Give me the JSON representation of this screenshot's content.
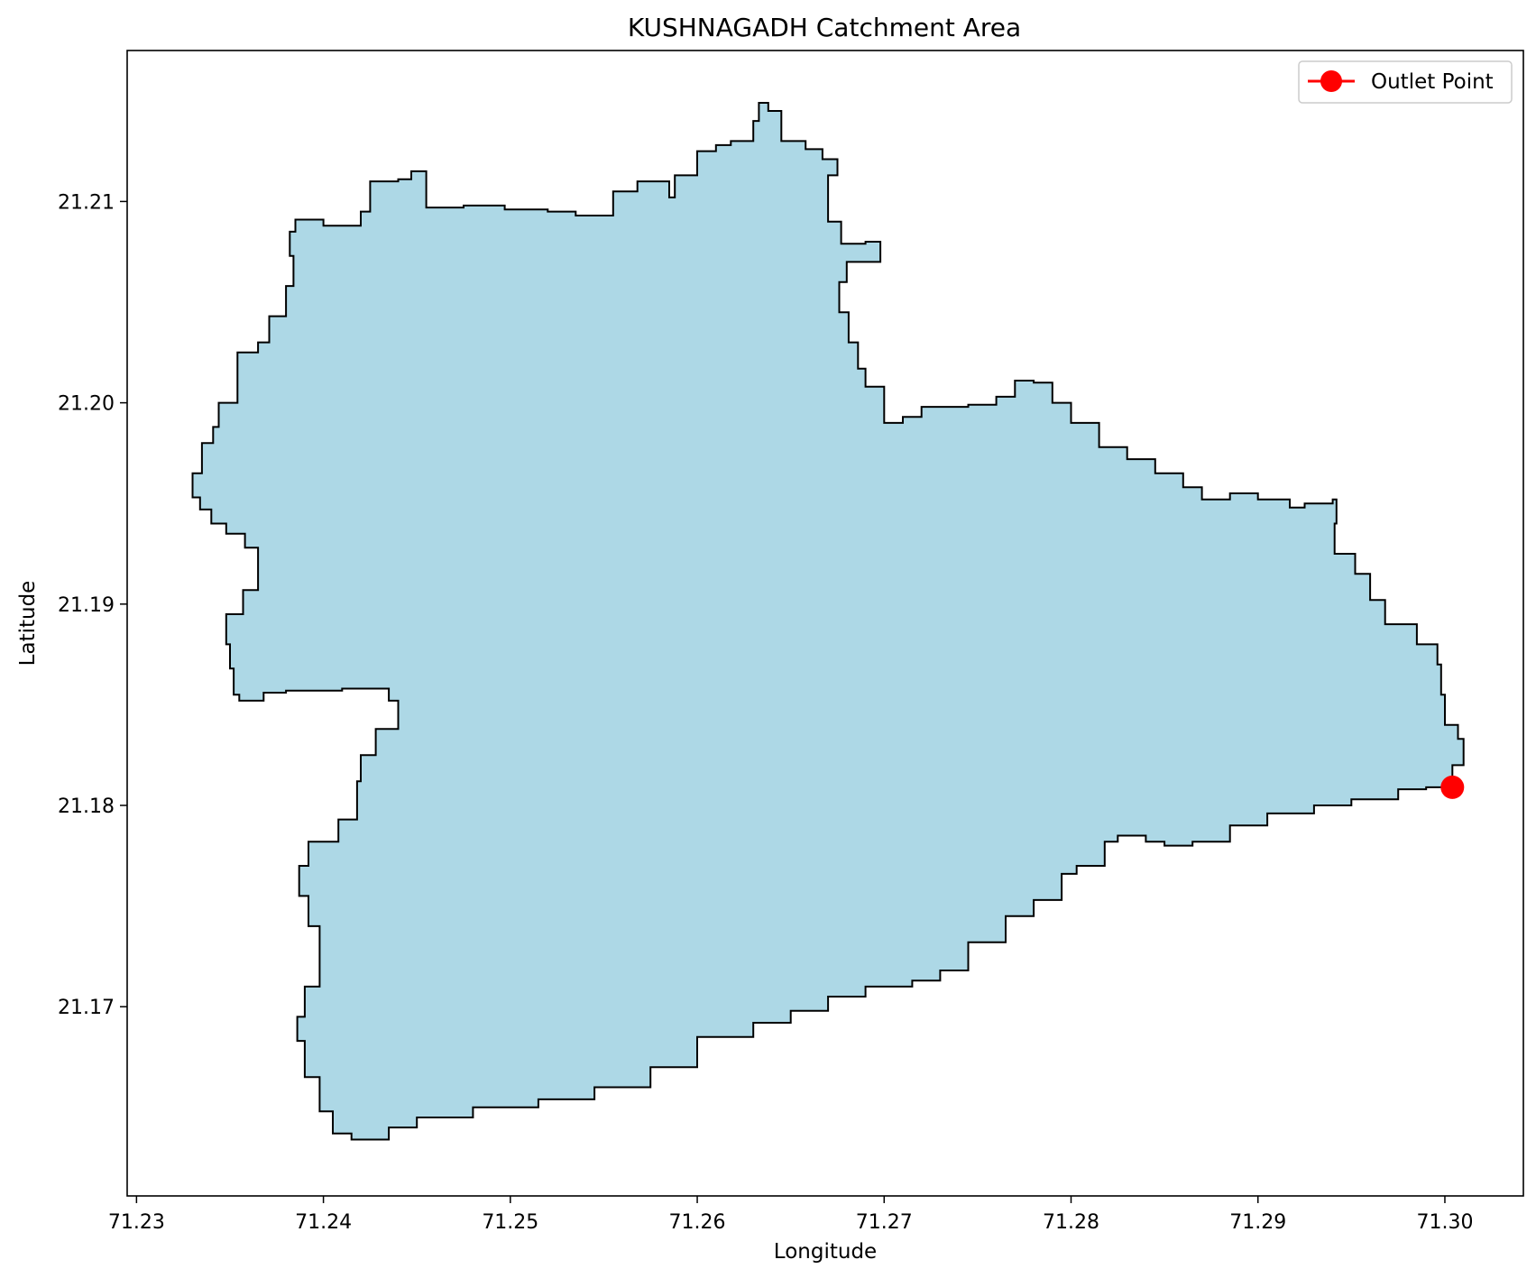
{
  "chart_data": {
    "type": "map",
    "title": "KUSHNAGADH Catchment Area",
    "xlabel": "Longitude",
    "ylabel": "Latitude",
    "xlim": [
      71.2295,
      71.3042
    ],
    "ylim": [
      21.1606,
      21.2175
    ],
    "x_ticks": [
      "71.23",
      "71.24",
      "71.25",
      "71.26",
      "71.27",
      "71.28",
      "71.29",
      "71.30"
    ],
    "x_tick_values": [
      71.23,
      71.24,
      71.25,
      71.26,
      71.27,
      71.28,
      71.29,
      71.3
    ],
    "y_ticks": [
      "21.17",
      "21.18",
      "21.19",
      "21.20",
      "21.21"
    ],
    "y_tick_values": [
      21.17,
      21.18,
      21.19,
      21.2,
      21.21
    ],
    "grid": false,
    "legend": {
      "position": "top-right",
      "entries": [
        {
          "label": "Outlet Point",
          "color": "#ff0000"
        }
      ]
    },
    "catchment_fill": "#add8e6",
    "catchment_edge": "#000000",
    "outlet": {
      "lon": 71.3004,
      "lat": 21.1809,
      "color": "#ff0000"
    },
    "boundary": [
      [
        71.2334,
        21.1953
      ],
      [
        71.233,
        21.1965
      ],
      [
        71.2335,
        21.198
      ],
      [
        71.2341,
        21.1988
      ],
      [
        71.2344,
        21.2
      ],
      [
        71.2354,
        21.2025
      ],
      [
        71.2365,
        21.203
      ],
      [
        71.2371,
        21.2043
      ],
      [
        71.238,
        21.2058
      ],
      [
        71.2384,
        21.2073
      ],
      [
        71.2382,
        21.2085
      ],
      [
        71.2385,
        21.2091
      ],
      [
        71.24,
        21.2088
      ],
      [
        71.241,
        21.2088
      ],
      [
        71.242,
        21.2095
      ],
      [
        71.2425,
        21.211
      ],
      [
        71.244,
        21.2111
      ],
      [
        71.2447,
        21.2115
      ],
      [
        71.2455,
        21.2097
      ],
      [
        71.2475,
        21.2098
      ],
      [
        71.2497,
        21.2096
      ],
      [
        71.252,
        21.2095
      ],
      [
        71.2535,
        21.2093
      ],
      [
        71.2555,
        21.2105
      ],
      [
        71.2568,
        21.211
      ],
      [
        71.2585,
        21.2102
      ],
      [
        71.2588,
        21.2113
      ],
      [
        71.26,
        21.2125
      ],
      [
        71.261,
        21.2128
      ],
      [
        71.2618,
        21.213
      ],
      [
        71.263,
        21.214
      ],
      [
        71.2633,
        21.2149
      ],
      [
        71.2638,
        21.2145
      ],
      [
        71.2645,
        21.213
      ],
      [
        71.2658,
        21.2126
      ],
      [
        71.2667,
        21.2121
      ],
      [
        71.2675,
        21.2113
      ],
      [
        71.267,
        21.21
      ],
      [
        71.267,
        21.209
      ],
      [
        71.2677,
        21.2079
      ],
      [
        71.269,
        21.208
      ],
      [
        71.2698,
        21.207
      ],
      [
        71.268,
        21.206
      ],
      [
        71.2676,
        21.2045
      ],
      [
        71.2681,
        21.203
      ],
      [
        71.2686,
        21.2017
      ],
      [
        71.269,
        21.2008
      ],
      [
        71.27,
        21.199
      ],
      [
        71.271,
        21.1993
      ],
      [
        71.272,
        21.1998
      ],
      [
        71.2745,
        21.1999
      ],
      [
        71.276,
        21.2003
      ],
      [
        71.277,
        21.2011
      ],
      [
        71.278,
        21.201
      ],
      [
        71.279,
        21.2
      ],
      [
        71.28,
        21.199
      ],
      [
        71.2815,
        21.1978
      ],
      [
        71.283,
        21.1972
      ],
      [
        71.2845,
        21.1965
      ],
      [
        71.286,
        21.1958
      ],
      [
        71.287,
        21.1952
      ],
      [
        71.2885,
        21.1955
      ],
      [
        71.29,
        21.1952
      ],
      [
        71.2917,
        21.1948
      ],
      [
        71.2925,
        21.195
      ],
      [
        71.294,
        21.1952
      ],
      [
        71.2942,
        21.194
      ],
      [
        71.2941,
        21.1925
      ],
      [
        71.2952,
        21.1915
      ],
      [
        71.296,
        21.1902
      ],
      [
        71.2968,
        21.189
      ],
      [
        71.2985,
        21.188
      ],
      [
        71.2996,
        21.187
      ],
      [
        71.2998,
        21.1855
      ],
      [
        71.3,
        21.184
      ],
      [
        71.3007,
        21.1833
      ],
      [
        71.301,
        21.182
      ],
      [
        71.3004,
        21.1809
      ],
      [
        71.299,
        21.1808
      ],
      [
        71.2975,
        21.1803
      ],
      [
        71.295,
        21.18
      ],
      [
        71.293,
        21.1796
      ],
      [
        71.2905,
        21.179
      ],
      [
        71.2885,
        21.1782
      ],
      [
        71.2865,
        21.178
      ],
      [
        71.285,
        21.1782
      ],
      [
        71.284,
        21.1785
      ],
      [
        71.2825,
        21.1782
      ],
      [
        71.2818,
        21.177
      ],
      [
        71.2803,
        21.1766
      ],
      [
        71.2795,
        21.1753
      ],
      [
        71.278,
        21.1745
      ],
      [
        71.2765,
        21.1732
      ],
      [
        71.2745,
        21.1718
      ],
      [
        71.273,
        21.1713
      ],
      [
        71.2715,
        21.171
      ],
      [
        71.269,
        21.1705
      ],
      [
        71.267,
        21.1698
      ],
      [
        71.265,
        21.1692
      ],
      [
        71.263,
        21.1685
      ],
      [
        71.26,
        21.167
      ],
      [
        71.2575,
        21.166
      ],
      [
        71.2545,
        21.1654
      ],
      [
        71.2515,
        21.165
      ],
      [
        71.248,
        21.1645
      ],
      [
        71.245,
        21.164
      ],
      [
        71.2435,
        21.1634
      ],
      [
        71.2415,
        21.1637
      ],
      [
        71.2405,
        21.1648
      ],
      [
        71.2398,
        21.1665
      ],
      [
        71.239,
        21.1683
      ],
      [
        71.2386,
        21.1695
      ],
      [
        71.239,
        21.171
      ],
      [
        71.2398,
        21.1725
      ],
      [
        71.2398,
        21.174
      ],
      [
        71.2392,
        21.1755
      ],
      [
        71.2387,
        21.177
      ],
      [
        71.2392,
        21.1782
      ],
      [
        71.2408,
        21.1793
      ],
      [
        71.2418,
        21.18
      ],
      [
        71.2418,
        21.1812
      ],
      [
        71.242,
        21.1825
      ],
      [
        71.2428,
        21.1838
      ],
      [
        71.244,
        21.1852
      ],
      [
        71.2435,
        21.1858
      ],
      [
        71.241,
        21.1857
      ],
      [
        71.2395,
        21.1857
      ],
      [
        71.238,
        21.1856
      ],
      [
        71.2368,
        21.1852
      ],
      [
        71.2355,
        21.1855
      ],
      [
        71.2352,
        21.1868
      ],
      [
        71.235,
        21.188
      ],
      [
        71.2348,
        21.1895
      ],
      [
        71.2357,
        21.1907
      ],
      [
        71.2365,
        21.1918
      ],
      [
        71.2365,
        21.1928
      ],
      [
        71.2358,
        21.1935
      ],
      [
        71.2348,
        21.194
      ],
      [
        71.234,
        21.1947
      ]
    ]
  }
}
